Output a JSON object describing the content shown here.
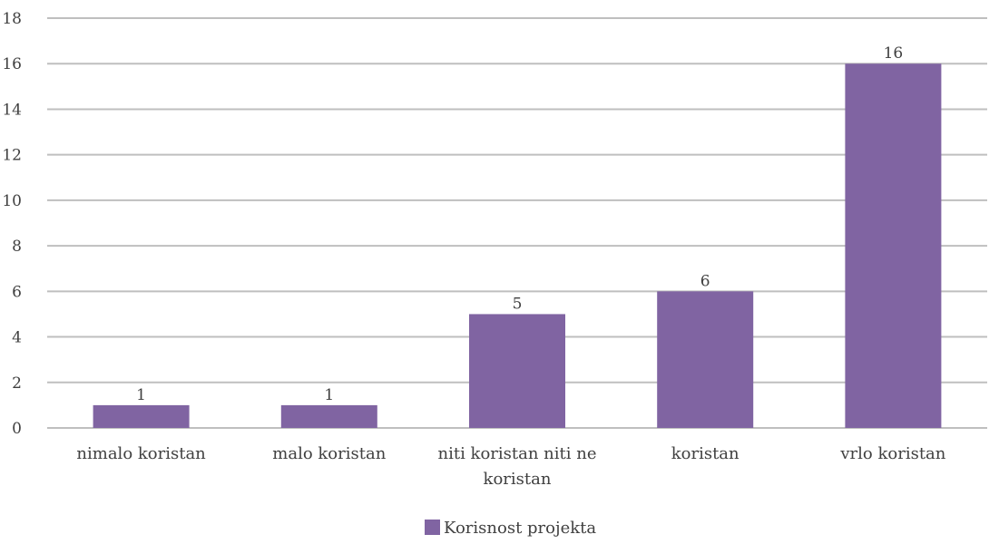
{
  "chart_data": {
    "type": "bar",
    "title": "",
    "xlabel": "",
    "ylabel": "",
    "categories": [
      [
        "nimalo koristan"
      ],
      [
        "malo koristan"
      ],
      [
        "niti koristan niti ne",
        "koristan"
      ],
      [
        "koristan"
      ],
      [
        "vrlo koristan"
      ]
    ],
    "series": [
      {
        "name": "Korisnost projekta",
        "values": [
          1,
          1,
          5,
          6,
          16
        ],
        "color": "#8064a2"
      }
    ],
    "ylim": [
      0,
      18
    ],
    "yticks": [
      0,
      2,
      4,
      6,
      8,
      10,
      12,
      14,
      16,
      18
    ],
    "grid": true,
    "gridColor": "#bfbfbf",
    "legend": "bottom",
    "dataLabels": true
  }
}
